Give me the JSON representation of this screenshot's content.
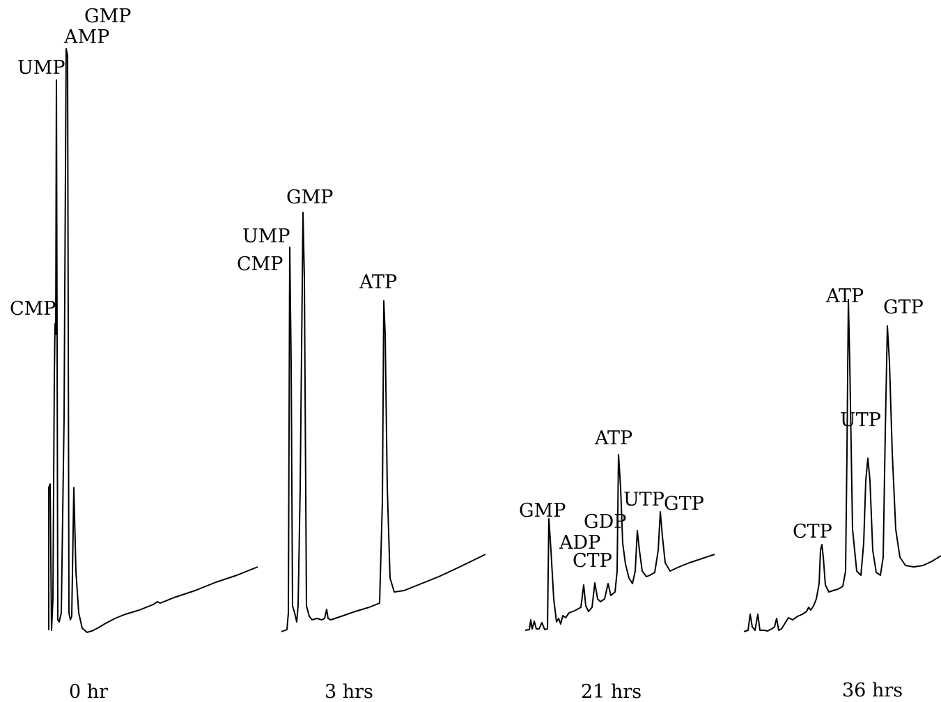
{
  "chart_data": {
    "type": "line",
    "panels": [
      {
        "time_label": "0 hr",
        "peaks": [
          {
            "name": "CMP",
            "height": 0.76
          },
          {
            "name": "UMP",
            "height": 1.58
          },
          {
            "name": "AMP",
            "height": 1.72
          },
          {
            "name": "GMP",
            "height": 1.75
          }
        ]
      },
      {
        "time_label": "3 hrs",
        "peaks": [
          {
            "name": "CMP",
            "height": 1.05
          },
          {
            "name": "UMP",
            "height": 1.1
          },
          {
            "name": "GMP",
            "height": 1.2
          },
          {
            "name": "ATP",
            "height": 0.92
          }
        ]
      },
      {
        "time_label": "21 hrs",
        "peaks": [
          {
            "name": "GMP",
            "height": 0.28
          },
          {
            "name": "ADP",
            "height": 0.14
          },
          {
            "name": "CTP",
            "height": 0.15
          },
          {
            "name": "GDP",
            "height": 0.14
          },
          {
            "name": "ATP",
            "height": 0.5
          },
          {
            "name": "UTP",
            "height": 0.27
          },
          {
            "name": "GTP",
            "height": 0.3
          }
        ]
      },
      {
        "time_label": "36 hrs",
        "peaks": [
          {
            "name": "CTP",
            "height": 0.24
          },
          {
            "name": "ATP",
            "height": 0.94
          },
          {
            "name": "UTP",
            "height": 0.5
          },
          {
            "name": "GTP",
            "height": 0.88
          }
        ]
      }
    ]
  }
}
